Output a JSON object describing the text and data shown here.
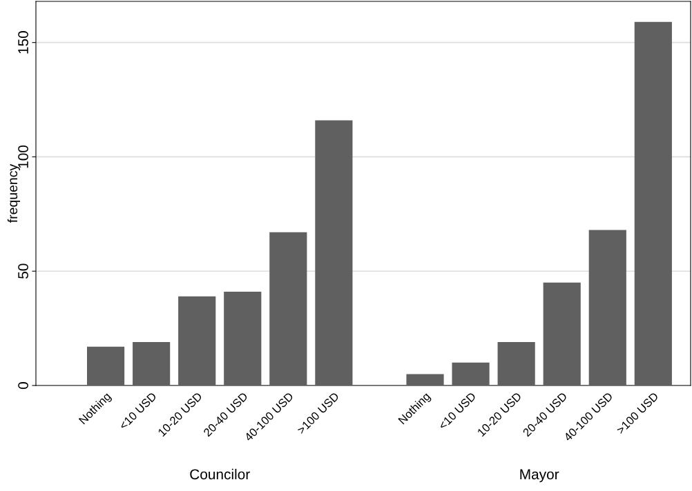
{
  "chart_data": {
    "type": "bar",
    "ylabel": "frequency",
    "categories": [
      "Nothing",
      "<10 USD",
      "10-20 USD",
      "20-40 USD",
      "40-100 USD",
      ">100 USD",
      null,
      "Nothing",
      "<10 USD",
      "10-20 USD",
      "20-40 USD",
      "40-100 USD",
      ">100 USD"
    ],
    "values": [
      17,
      19,
      39,
      41,
      67,
      116,
      null,
      5,
      10,
      19,
      45,
      68,
      159
    ],
    "color": "#606060",
    "annotations": [
      "Councilor",
      "Mayor"
    ],
    "ylim": [
      0,
      168
    ],
    "yticks": [
      0,
      50,
      100,
      150
    ],
    "grid": "y"
  }
}
